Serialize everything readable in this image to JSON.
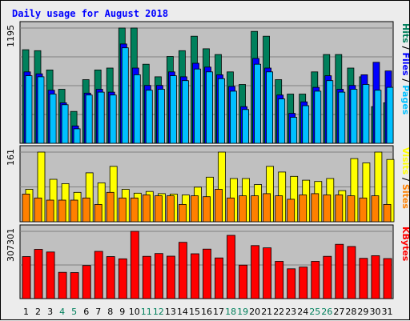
{
  "colors": {
    "background": "#ececec",
    "panel": "#c0c0c0",
    "hits": "#00805c",
    "files": "#0000ff",
    "pages": "#00c0ff",
    "visits": "#ffff00",
    "sites": "#ff8000",
    "kbytes": "#ff0000",
    "title": "#0000ff",
    "weekend_day": "#00805c"
  },
  "chart_data": {
    "type": "bar",
    "title": "Daily usage for August 2018",
    "days": [
      "1",
      "2",
      "3",
      "4",
      "5",
      "6",
      "7",
      "8",
      "9",
      "10",
      "11",
      "12",
      "13",
      "14",
      "15",
      "16",
      "17",
      "18",
      "19",
      "20",
      "21",
      "22",
      "23",
      "24",
      "25",
      "26",
      "27",
      "28",
      "29",
      "30",
      "31"
    ],
    "weekend_days": [
      "4",
      "5",
      "11",
      "12",
      "18",
      "19",
      "25",
      "26"
    ],
    "panels": [
      {
        "name": "hits-files-pages",
        "ymax_label": "1195",
        "ymax": 1195,
        "legend": [
          "Pages",
          "Files",
          "Hits"
        ],
        "series": [
          {
            "name": "Hits",
            "color_key": "hits",
            "values": [
              970,
              960,
              760,
              560,
              330,
              660,
              760,
              780,
              1195,
              1195,
              820,
              690,
              900,
              960,
              1110,
              980,
              920,
              740,
              610,
              1160,
              1110,
              660,
              510,
              510,
              740,
              920,
              920,
              780,
              690,
              380,
              420
            ]
          },
          {
            "name": "Files",
            "color_key": "files",
            "values": [
              740,
              720,
              550,
              420,
              180,
              520,
              560,
              530,
              1030,
              780,
              600,
              600,
              740,
              690,
              830,
              790,
              710,
              590,
              380,
              880,
              780,
              500,
              310,
              430,
              580,
              700,
              560,
              600,
              710,
              840,
              750
            ]
          },
          {
            "name": "Pages",
            "color_key": "pages",
            "values": [
              700,
              690,
              510,
              400,
              150,
              500,
              530,
              500,
              990,
              710,
              550,
              560,
              700,
              650,
              770,
              740,
              670,
              540,
              350,
              820,
              740,
              460,
              270,
              390,
              540,
              650,
              530,
              560,
              610,
              550,
              580
            ]
          }
        ]
      },
      {
        "name": "visits-sites",
        "ymax_label": "161",
        "ymax": 161,
        "legend": [
          "Sites",
          "Visits"
        ],
        "series": [
          {
            "name": "Visits",
            "color_key": "visits",
            "values": [
              75,
              161,
              98,
              88,
              68,
              113,
              90,
              128,
              75,
              66,
              70,
              65,
              64,
              62,
              80,
              103,
              161,
              100,
              100,
              86,
              128,
              115,
              105,
              96,
              93,
              100,
              72,
              146,
              136,
              161,
              144
            ]
          },
          {
            "name": "Sites",
            "color_key": "sites",
            "values": [
              64,
              55,
              50,
              50,
              50,
              55,
              40,
              68,
              55,
              55,
              62,
              60,
              60,
              40,
              60,
              58,
              75,
              55,
              60,
              60,
              65,
              60,
              52,
              62,
              65,
              62,
              62,
              60,
              55,
              60,
              40
            ]
          }
        ]
      },
      {
        "name": "kbytes",
        "ymax_label": "307301",
        "ymax": 307301,
        "legend": [
          "KBytes"
        ],
        "series": [
          {
            "name": "KBytes",
            "color_key": "kbytes",
            "values": [
              192000,
              225000,
              213000,
              120000,
              119000,
              151000,
              216000,
              192000,
              182000,
              307301,
              193000,
              206000,
              194000,
              257000,
              205000,
              226000,
              186000,
              289000,
              153000,
              242000,
              232000,
              170000,
              136000,
              144000,
              170000,
              193000,
              248000,
              238000,
              184000,
              196000,
              183000
            ]
          }
        ]
      }
    ]
  }
}
